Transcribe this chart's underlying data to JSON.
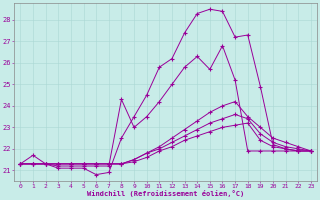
{
  "xlabel": "Windchill (Refroidissement éolien,°C)",
  "background_color": "#c8ece8",
  "line_color": "#990099",
  "xlim": [
    -0.5,
    23.5
  ],
  "ylim": [
    20.5,
    28.8
  ],
  "yticks": [
    21,
    22,
    23,
    24,
    25,
    26,
    27,
    28
  ],
  "xticks": [
    0,
    1,
    2,
    3,
    4,
    5,
    6,
    7,
    8,
    9,
    10,
    11,
    12,
    13,
    14,
    15,
    16,
    17,
    18,
    19,
    20,
    21,
    22,
    23
  ],
  "series": [
    [
      21.3,
      21.7,
      21.3,
      21.1,
      21.1,
      21.1,
      20.8,
      20.9,
      22.5,
      23.5,
      24.5,
      25.8,
      26.2,
      27.4,
      28.3,
      28.5,
      28.4,
      27.2,
      27.3,
      24.9,
      22.2,
      22.0,
      21.9,
      21.9
    ],
    [
      21.3,
      21.3,
      21.3,
      21.2,
      21.2,
      21.2,
      21.2,
      21.2,
      24.3,
      23.0,
      23.5,
      24.2,
      25.0,
      25.8,
      26.3,
      25.7,
      26.8,
      25.2,
      21.9,
      21.9,
      21.9,
      21.9,
      21.9,
      21.9
    ],
    [
      21.3,
      21.3,
      21.3,
      21.3,
      21.3,
      21.3,
      21.3,
      21.3,
      21.3,
      21.5,
      21.8,
      22.1,
      22.5,
      22.9,
      23.3,
      23.7,
      24.0,
      24.2,
      23.5,
      23.0,
      22.5,
      22.3,
      22.1,
      21.9
    ],
    [
      21.3,
      21.3,
      21.3,
      21.3,
      21.3,
      21.3,
      21.3,
      21.3,
      21.3,
      21.5,
      21.8,
      22.0,
      22.3,
      22.6,
      22.9,
      23.2,
      23.4,
      23.6,
      23.4,
      22.7,
      22.3,
      22.1,
      22.0,
      21.9
    ],
    [
      21.3,
      21.3,
      21.3,
      21.3,
      21.3,
      21.3,
      21.3,
      21.3,
      21.3,
      21.4,
      21.6,
      21.9,
      22.1,
      22.4,
      22.6,
      22.8,
      23.0,
      23.1,
      23.2,
      22.4,
      22.1,
      22.0,
      21.9,
      21.9
    ]
  ]
}
